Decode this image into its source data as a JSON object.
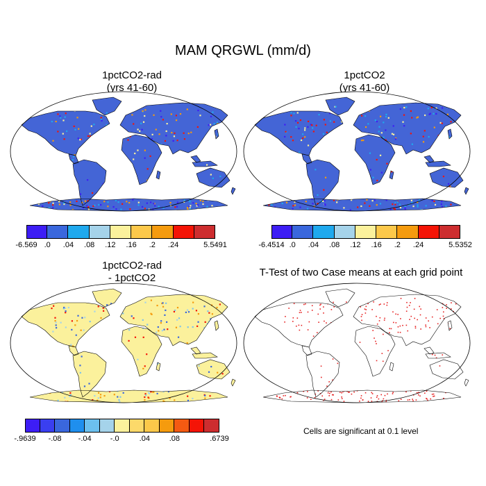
{
  "title": "MAM QRGWL (mm/d)",
  "panels": [
    {
      "id": "p1",
      "title": "1pctCO2-rad\n(yrs 41-60)",
      "type": "field",
      "colorbar": {
        "colors": [
          "#3d1df5",
          "#3a67dd",
          "#1fa9ee",
          "#a5d3ea",
          "#fbf19c",
          "#fcc84a",
          "#f59b0e",
          "#f41406",
          "#cd2d2f"
        ],
        "labels": [
          "-6.569",
          ".0",
          ".04",
          ".08",
          ".12",
          ".16",
          ".2",
          ".24",
          "5.5491"
        ]
      }
    },
    {
      "id": "p2",
      "title": "1pctCO2\n(yrs 41-60)",
      "type": "field",
      "colorbar": {
        "colors": [
          "#3d1df5",
          "#3a67dd",
          "#1fa9ee",
          "#a5d3ea",
          "#fbf19c",
          "#fcc84a",
          "#f59b0e",
          "#f41406",
          "#cd2d2f"
        ],
        "labels": [
          "-6.4514",
          ".0",
          ".04",
          ".08",
          ".12",
          ".16",
          ".2",
          ".24",
          "5.5352"
        ]
      }
    },
    {
      "id": "p3",
      "title": "1pctCO2-rad\n- 1pctCO2",
      "type": "diff",
      "colorbar": {
        "colors": [
          "#3d1df5",
          "#3a3ff0",
          "#3a67dd",
          "#1f8fee",
          "#6cc0ee",
          "#a5d3ea",
          "#fbf19c",
          "#fcd96a",
          "#fcc84a",
          "#f59b0e",
          "#f45a12",
          "#f41406",
          "#cd2d2f"
        ],
        "labels": [
          "-.9639",
          "-.08",
          "-.04",
          "-.0",
          ".04",
          ".08",
          ".6739"
        ]
      }
    },
    {
      "id": "p4",
      "title": "T-Test of two Case means at each grid point",
      "type": "ttest"
    }
  ],
  "note": "Cells are significant at 0.1 level",
  "colors": {
    "land_field": "#4465d6",
    "land_diff": "#fbf19c",
    "hot": "#e62020",
    "cool": "#7fc3ea",
    "coast": "#000000"
  },
  "map_projection": "Robinson"
}
